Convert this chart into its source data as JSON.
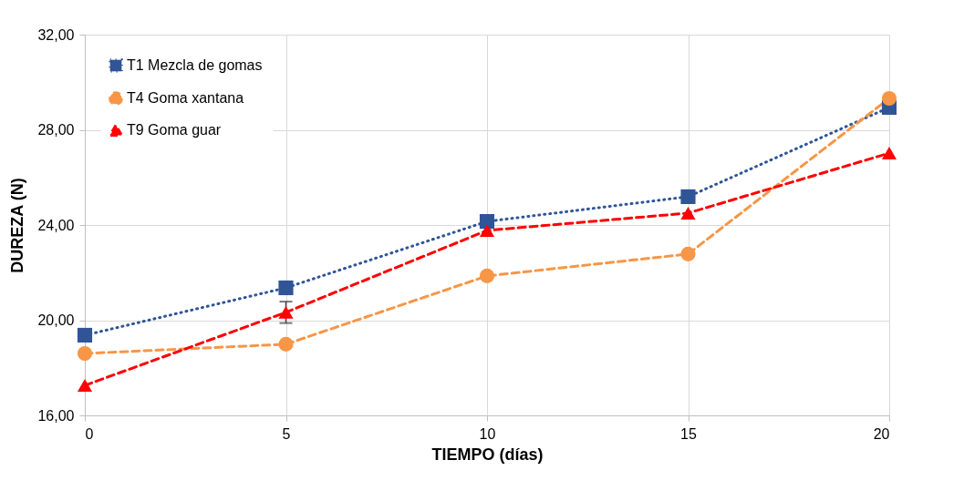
{
  "chart_data": {
    "type": "line",
    "xlabel": "TIEMPO (días)",
    "ylabel": "DUREZA  (N)",
    "xlim": [
      0,
      20
    ],
    "xticks": [
      0,
      5,
      10,
      15,
      20
    ],
    "ylim": [
      16,
      32
    ],
    "yticks": [
      {
        "value": 16,
        "label": "16,00"
      },
      {
        "value": 20,
        "label": "20,00"
      },
      {
        "value": 24,
        "label": "24,00"
      },
      {
        "value": 28,
        "label": "28,00"
      },
      {
        "value": 32,
        "label": "32,00"
      }
    ],
    "x": [
      0,
      5,
      10,
      15,
      20
    ],
    "series": [
      {
        "name": "T1  Mezcla de gomas",
        "color": "#2f5597",
        "marker": "square",
        "line_style": "dotted",
        "values": [
          19.37,
          21.36,
          24.15,
          25.19,
          28.94
        ]
      },
      {
        "name": "T4  Goma xantana",
        "color": "#f79646",
        "marker": "circle",
        "line_style": "dashed",
        "values": [
          18.6,
          18.99,
          21.86,
          22.78,
          29.32
        ]
      },
      {
        "name": "T9  Goma guar",
        "color": "#ff0000",
        "marker": "triangle",
        "line_style": "dashed",
        "values": [
          17.26,
          20.33,
          23.77,
          24.5,
          27.02
        ],
        "errors": [
          null,
          0.45,
          null,
          null,
          null
        ]
      }
    ],
    "grid": true,
    "legend": "top left"
  }
}
